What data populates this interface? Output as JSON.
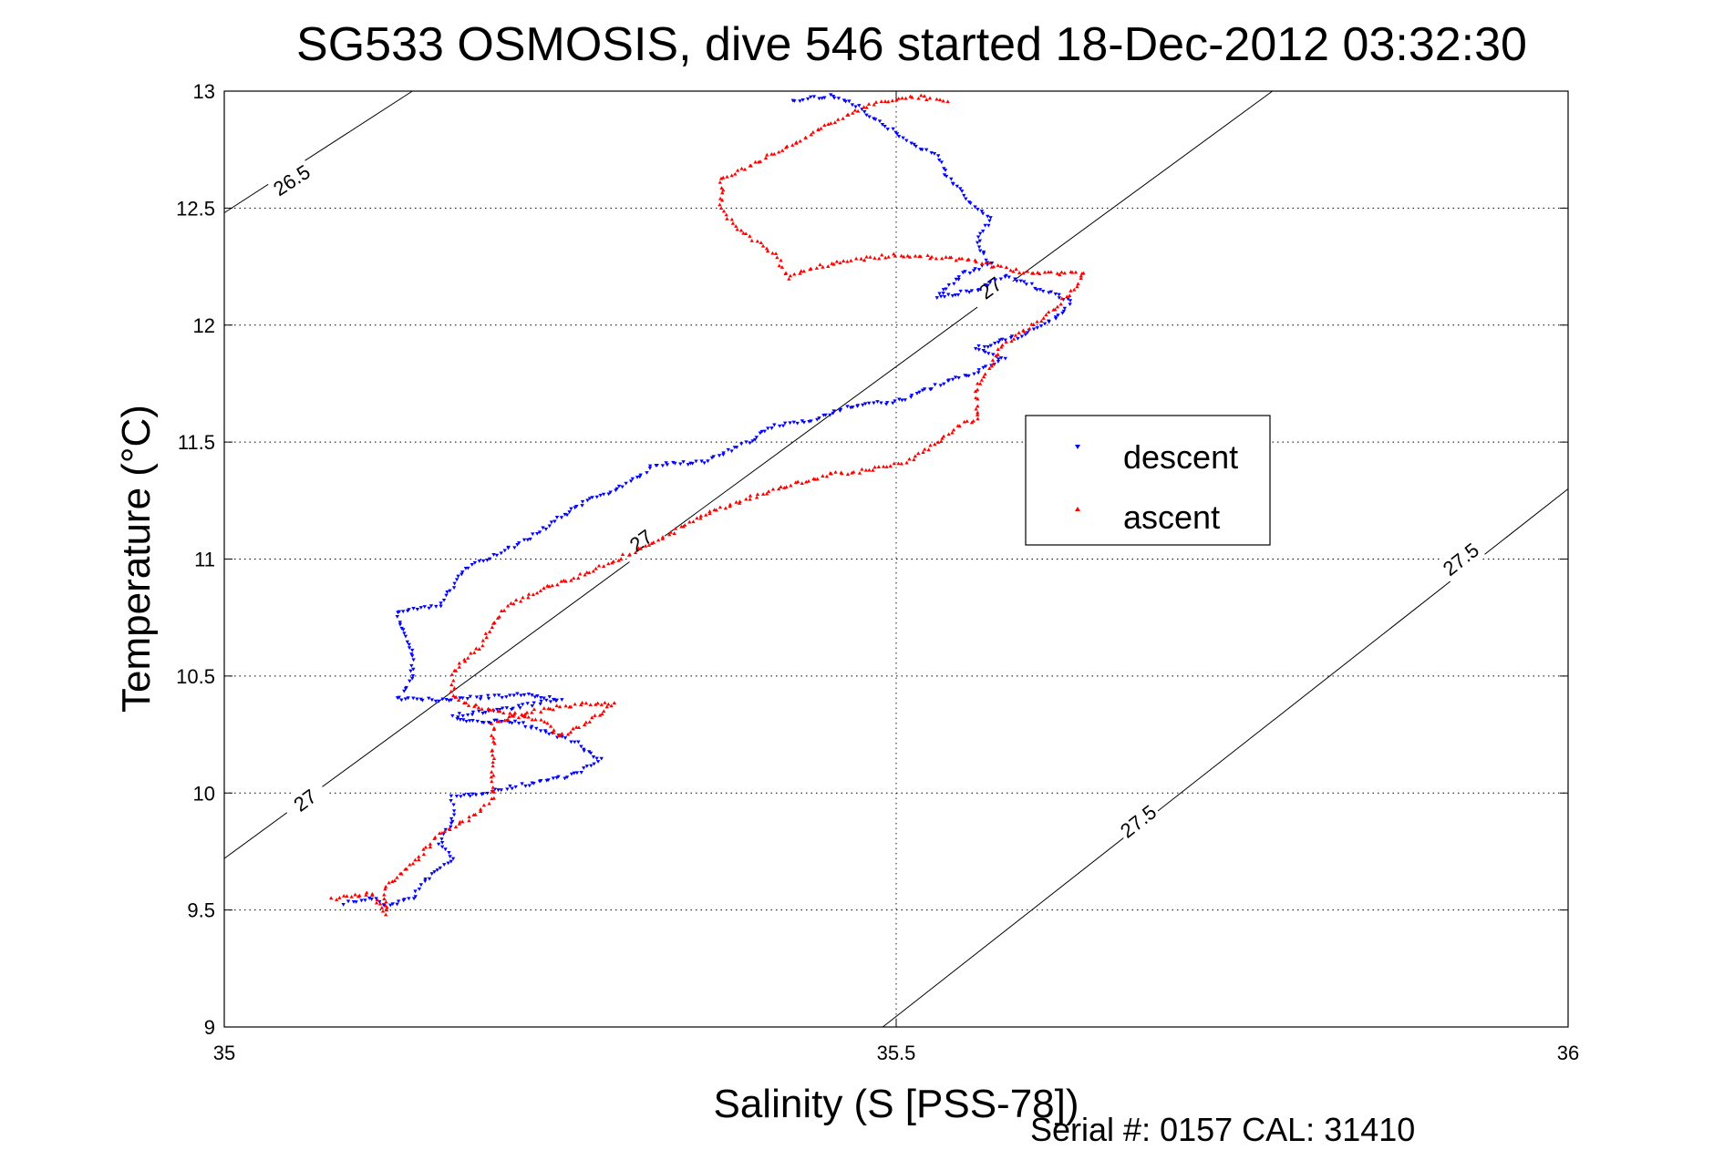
{
  "chart_data": {
    "type": "scatter",
    "title": "SG533 OSMOSIS, dive 546 started 18-Dec-2012 03:32:30",
    "xlabel": "Salinity (S [PSS-78])",
    "ylabel": "Temperature (°C)",
    "xlim": [
      35,
      36
    ],
    "ylim": [
      9,
      13
    ],
    "x_ticks": [
      "35",
      "35.5",
      "36"
    ],
    "y_ticks": [
      "9",
      "9.5",
      "10",
      "10.5",
      "11",
      "11.5",
      "12",
      "12.5",
      "13"
    ],
    "grid": "on (dotted, at tick marks)",
    "legend_placement": "center-right",
    "series": [
      {
        "name": "descent",
        "marker": "downward-triangle",
        "color": "#0000ff",
        "path": [
          [
            35.09,
            9.53
          ],
          [
            35.11,
            9.55
          ],
          [
            35.12,
            9.52
          ],
          [
            35.14,
            9.55
          ],
          [
            35.15,
            9.63
          ],
          [
            35.17,
            9.72
          ],
          [
            35.16,
            9.78
          ],
          [
            35.17,
            9.88
          ],
          [
            35.17,
            9.98
          ],
          [
            35.21,
            10.02
          ],
          [
            35.26,
            10.08
          ],
          [
            35.28,
            10.14
          ],
          [
            35.26,
            10.22
          ],
          [
            35.24,
            10.26
          ],
          [
            35.22,
            10.3
          ],
          [
            35.18,
            10.31
          ],
          [
            35.17,
            10.33
          ],
          [
            35.21,
            10.36
          ],
          [
            35.25,
            10.4
          ],
          [
            35.22,
            10.42
          ],
          [
            35.17,
            10.4
          ],
          [
            35.13,
            10.4
          ],
          [
            35.14,
            10.5
          ],
          [
            35.14,
            10.6
          ],
          [
            35.13,
            10.72
          ],
          [
            35.13,
            10.78
          ],
          [
            35.16,
            10.8
          ],
          [
            35.17,
            10.88
          ],
          [
            35.18,
            10.96
          ],
          [
            35.21,
            11.04
          ],
          [
            35.23,
            11.1
          ],
          [
            35.25,
            11.18
          ],
          [
            35.27,
            11.25
          ],
          [
            35.3,
            11.32
          ],
          [
            35.32,
            11.4
          ],
          [
            35.36,
            11.42
          ],
          [
            35.39,
            11.5
          ],
          [
            35.41,
            11.57
          ],
          [
            35.44,
            11.6
          ],
          [
            35.47,
            11.66
          ],
          [
            35.5,
            11.67
          ],
          [
            35.53,
            11.74
          ],
          [
            35.56,
            11.8
          ],
          [
            35.58,
            11.86
          ],
          [
            35.56,
            11.9
          ],
          [
            35.59,
            11.95
          ],
          [
            35.62,
            12.03
          ],
          [
            35.63,
            12.1
          ],
          [
            35.6,
            12.17
          ],
          [
            35.58,
            12.21
          ],
          [
            35.56,
            12.15
          ],
          [
            35.53,
            12.12
          ],
          [
            35.55,
            12.22
          ],
          [
            35.57,
            12.26
          ],
          [
            35.56,
            12.35
          ],
          [
            35.57,
            12.46
          ],
          [
            35.56,
            12.5
          ],
          [
            35.54,
            12.62
          ],
          [
            35.53,
            12.72
          ],
          [
            35.51,
            12.78
          ],
          [
            35.49,
            12.86
          ],
          [
            35.47,
            12.94
          ],
          [
            35.45,
            12.98
          ],
          [
            35.42,
            12.96
          ]
        ]
      },
      {
        "name": "ascent",
        "marker": "upward-triangle",
        "color": "#ff0000",
        "path": [
          [
            35.08,
            9.55
          ],
          [
            35.11,
            9.57
          ],
          [
            35.12,
            9.48
          ],
          [
            35.12,
            9.6
          ],
          [
            35.14,
            9.7
          ],
          [
            35.16,
            9.82
          ],
          [
            35.19,
            9.92
          ],
          [
            35.2,
            9.98
          ],
          [
            35.2,
            10.08
          ],
          [
            35.2,
            10.16
          ],
          [
            35.2,
            10.22
          ],
          [
            35.2,
            10.3
          ],
          [
            35.22,
            10.34
          ],
          [
            35.24,
            10.36
          ],
          [
            35.27,
            10.38
          ],
          [
            35.29,
            10.38
          ],
          [
            35.27,
            10.3
          ],
          [
            35.25,
            10.24
          ],
          [
            35.24,
            10.3
          ],
          [
            35.18,
            10.38
          ],
          [
            35.17,
            10.42
          ],
          [
            35.17,
            10.52
          ],
          [
            35.19,
            10.62
          ],
          [
            35.2,
            10.72
          ],
          [
            35.21,
            10.8
          ],
          [
            35.24,
            10.88
          ],
          [
            35.27,
            10.94
          ],
          [
            35.3,
            11.02
          ],
          [
            35.33,
            11.1
          ],
          [
            35.36,
            11.2
          ],
          [
            35.39,
            11.26
          ],
          [
            35.43,
            11.33
          ],
          [
            35.45,
            11.36
          ],
          [
            35.48,
            11.38
          ],
          [
            35.51,
            11.42
          ],
          [
            35.53,
            11.5
          ],
          [
            35.55,
            11.58
          ],
          [
            35.56,
            11.6
          ],
          [
            35.56,
            11.66
          ],
          [
            35.56,
            11.73
          ],
          [
            35.57,
            11.82
          ],
          [
            35.58,
            11.92
          ],
          [
            35.61,
            12.03
          ],
          [
            35.63,
            12.14
          ],
          [
            35.64,
            12.22
          ],
          [
            35.6,
            12.22
          ],
          [
            35.55,
            12.28
          ],
          [
            35.5,
            12.3
          ],
          [
            35.47,
            12.28
          ],
          [
            35.44,
            12.25
          ],
          [
            35.42,
            12.2
          ],
          [
            35.41,
            12.3
          ],
          [
            35.38,
            12.42
          ],
          [
            35.37,
            12.5
          ],
          [
            35.37,
            12.62
          ],
          [
            35.39,
            12.68
          ],
          [
            35.42,
            12.76
          ],
          [
            35.45,
            12.86
          ],
          [
            35.48,
            12.94
          ],
          [
            35.51,
            12.98
          ],
          [
            35.54,
            12.96
          ]
        ]
      }
    ],
    "contours": [
      {
        "label": "26.5",
        "points": [
          [
            35.0,
            12.48
          ],
          [
            35.14,
            13.0
          ]
        ],
        "label_at": [
          [
            35.05,
            12.62
          ]
        ]
      },
      {
        "label": "27",
        "points": [
          [
            35.0,
            9.72
          ],
          [
            35.78,
            13.0
          ]
        ],
        "label_at": [
          [
            35.06,
            9.97
          ],
          [
            35.31,
            11.08
          ],
          [
            35.57,
            12.16
          ]
        ]
      },
      {
        "label": "27.5",
        "points": [
          [
            35.49,
            9.0
          ],
          [
            36.0,
            11.3
          ]
        ],
        "label_at": [
          [
            35.68,
            9.88
          ],
          [
            35.92,
            11.0
          ]
        ]
      }
    ]
  },
  "legend": {
    "descent_label": "descent",
    "ascent_label": "ascent"
  },
  "footer": {
    "serial_text": "Serial #: 0157  CAL: 31410"
  }
}
